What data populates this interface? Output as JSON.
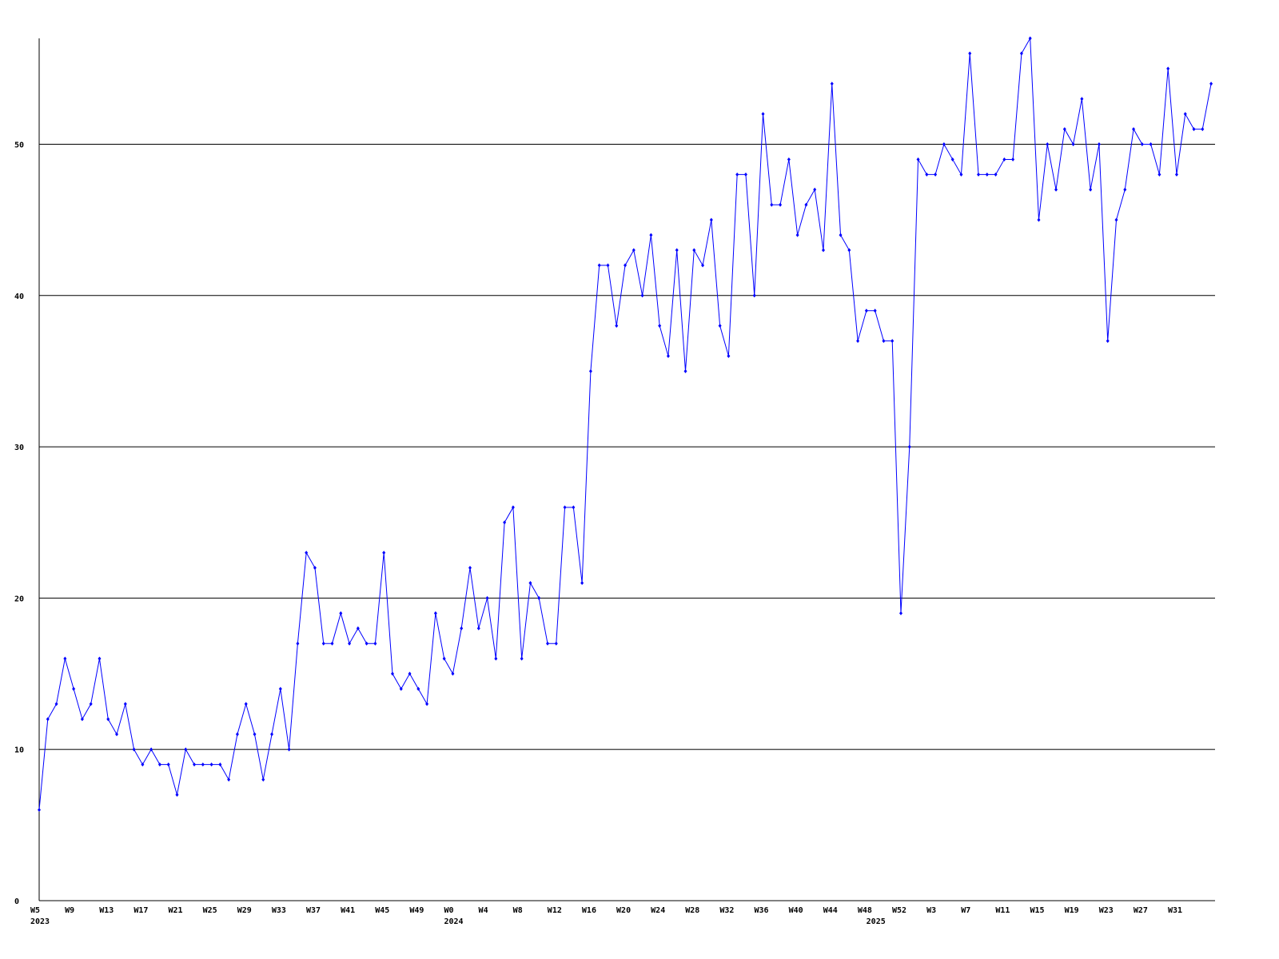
{
  "chart_data": {
    "type": "line",
    "color": "#0000ff",
    "grid": true,
    "ylim": [
      0,
      57
    ],
    "yticks": [
      0,
      10,
      20,
      30,
      40,
      50
    ],
    "categories": [
      "W5",
      null,
      null,
      null,
      "W9",
      null,
      null,
      null,
      "W13",
      null,
      null,
      null,
      "W17",
      null,
      null,
      null,
      "W21",
      null,
      null,
      null,
      "W25",
      null,
      null,
      null,
      "W29",
      null,
      null,
      null,
      "W33",
      null,
      null,
      null,
      "W37",
      null,
      null,
      null,
      "W41",
      null,
      null,
      null,
      "W45",
      null,
      null,
      null,
      "W49",
      null,
      null,
      null,
      "W0",
      null,
      null,
      null,
      "W4",
      null,
      null,
      null,
      "W8",
      null,
      null,
      null,
      "W12",
      null,
      null,
      null,
      "W16",
      null,
      null,
      null,
      "W20",
      null,
      null,
      null,
      "W24",
      null,
      null,
      null,
      "W28",
      null,
      null,
      null,
      "W32",
      null,
      null,
      null,
      "W36",
      null,
      null,
      null,
      "W40",
      null,
      null,
      null,
      "W44",
      null,
      null,
      null,
      "W48",
      null,
      null,
      null,
      "W52",
      null,
      null,
      null,
      "W3",
      null,
      null,
      null,
      "W7",
      null,
      null,
      null,
      "W11",
      null,
      null,
      null,
      "W15",
      null,
      null,
      null,
      "W19",
      null,
      null,
      null,
      "W23",
      null,
      null,
      null,
      "W27",
      null,
      null,
      null,
      "W31",
      null,
      null,
      null,
      null
    ],
    "years": [
      "2023",
      null,
      null,
      null,
      null,
      null,
      null,
      null,
      null,
      null,
      null,
      null,
      null,
      null,
      null,
      null,
      null,
      null,
      null,
      null,
      null,
      null,
      null,
      null,
      null,
      null,
      null,
      null,
      null,
      null,
      null,
      null,
      null,
      null,
      null,
      null,
      null,
      null,
      null,
      null,
      null,
      null,
      null,
      null,
      null,
      null,
      null,
      null,
      "2024",
      null,
      null,
      null,
      null,
      null,
      null,
      null,
      null,
      null,
      null,
      null,
      null,
      null,
      null,
      null,
      null,
      null,
      null,
      null,
      null,
      null,
      null,
      null,
      null,
      null,
      null,
      null,
      null,
      null,
      null,
      null,
      null,
      null,
      null,
      null,
      null,
      null,
      null,
      null,
      null,
      null,
      null,
      null,
      null,
      null,
      null,
      null,
      null,
      "2025",
      null,
      null,
      null,
      null,
      null,
      null,
      null,
      null,
      null,
      null,
      null,
      null,
      null,
      null,
      null,
      null,
      null,
      null,
      null,
      null,
      null,
      null,
      null,
      null,
      null,
      null,
      null,
      null,
      null,
      null,
      null,
      null,
      null,
      null,
      null
    ],
    "values": [
      6,
      12,
      13,
      16,
      14,
      12,
      13,
      16,
      12,
      11,
      13,
      10,
      9,
      10,
      9,
      9,
      7,
      10,
      9,
      9,
      9,
      9,
      8,
      11,
      13,
      11,
      8,
      11,
      14,
      10,
      17,
      23,
      22,
      17,
      17,
      19,
      17,
      18,
      17,
      17,
      23,
      15,
      14,
      15,
      14,
      13,
      19,
      16,
      15,
      18,
      22,
      18,
      20,
      16,
      25,
      26,
      16,
      21,
      20,
      17,
      17,
      26,
      26,
      21,
      35,
      42,
      42,
      38,
      42,
      43,
      40,
      44,
      38,
      36,
      43,
      35,
      43,
      42,
      45,
      38,
      36,
      48,
      48,
      40,
      52,
      46,
      46,
      49,
      44,
      46,
      47,
      43,
      54,
      44,
      43,
      37,
      39,
      39,
      37,
      37,
      19,
      30,
      49,
      48,
      48,
      50,
      49,
      48,
      56,
      48,
      48,
      48,
      49,
      49,
      56,
      57,
      45,
      50,
      47,
      51,
      50,
      53,
      47,
      50,
      37,
      45,
      47,
      51,
      50,
      50,
      48,
      55,
      48,
      52,
      51,
      51,
      54
    ]
  }
}
